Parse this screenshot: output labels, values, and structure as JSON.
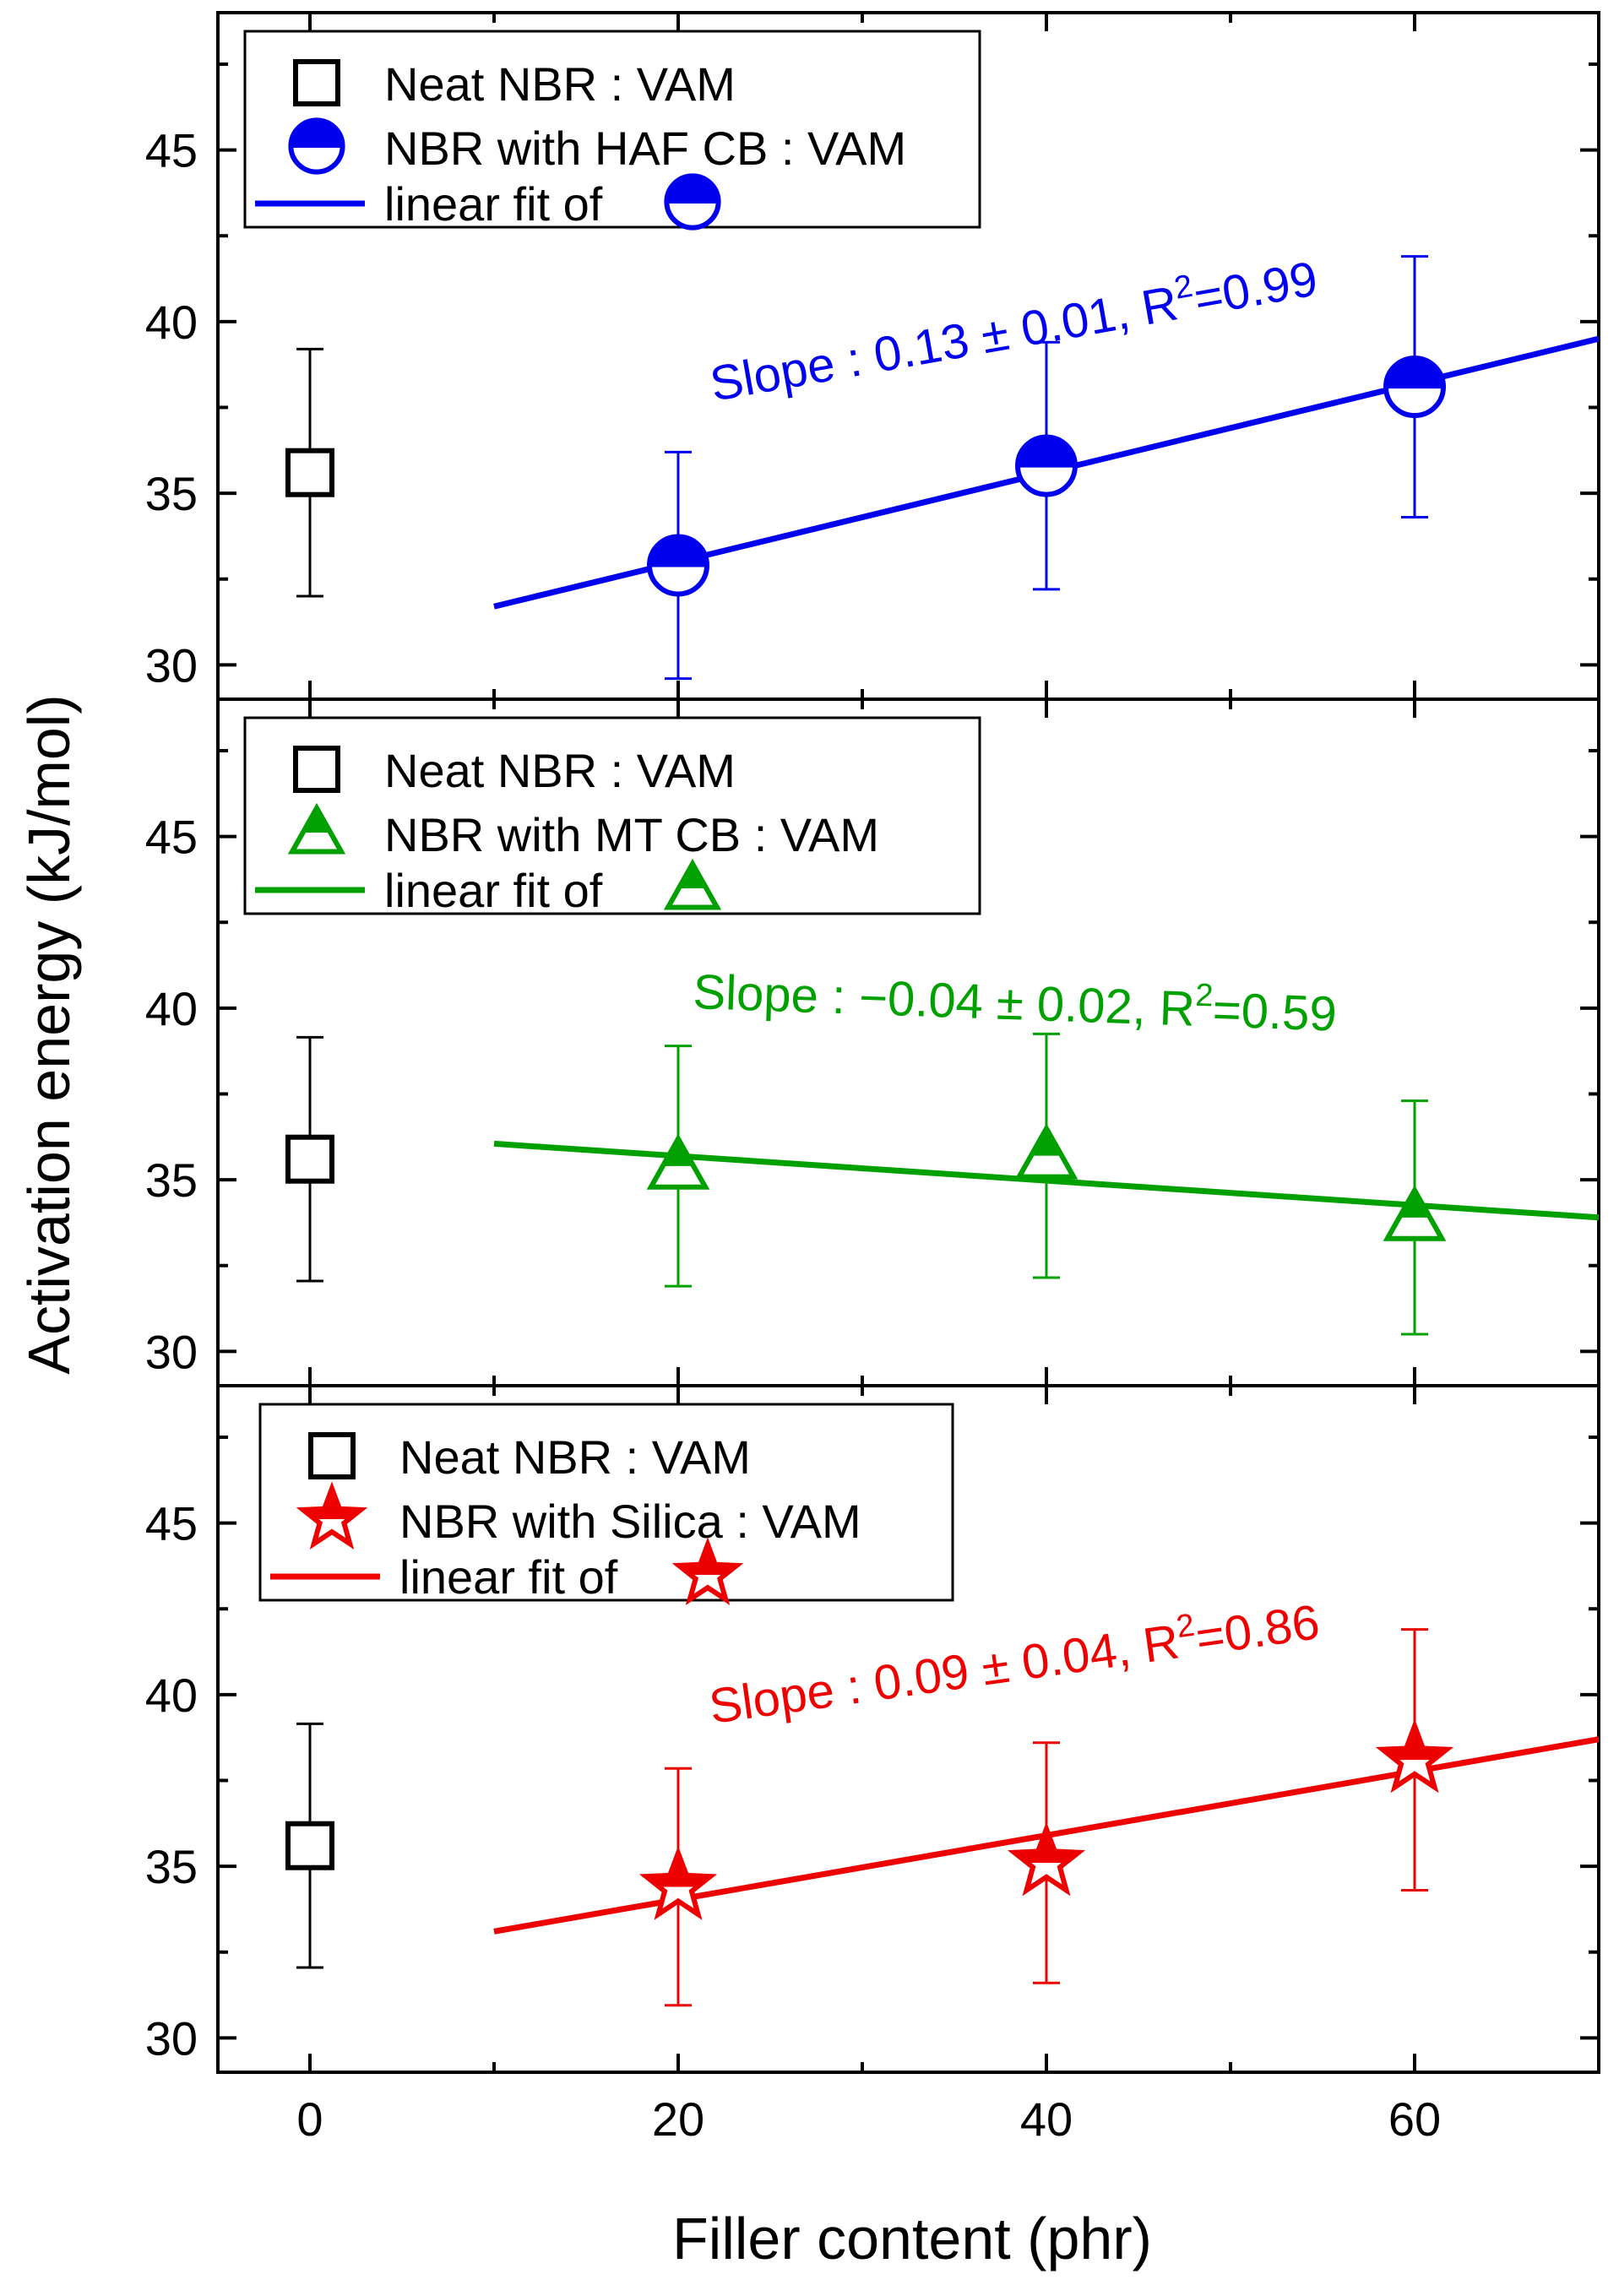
{
  "figure": {
    "ylabel": "Activation energy (kJ/mol)",
    "xlabel": "Filler content (phr)",
    "x_ticks": [
      "0",
      "20",
      "40",
      "60"
    ]
  },
  "chart_data": [
    {
      "type": "scatter",
      "panel": "top",
      "xlim": [
        -5,
        70
      ],
      "ylim": [
        29,
        49
      ],
      "y_ticks": [
        "30",
        "35",
        "40",
        "45"
      ],
      "y_tick_values": [
        30,
        35,
        40,
        45
      ],
      "color": "#0000ee",
      "legend": {
        "placement": "top-left",
        "neat": "Neat NBR : VAM",
        "filled": "NBR with HAF CB : VAM",
        "fit": "linear fit of"
      },
      "marker": "half-circle",
      "annotation": {
        "prefix": "Slope : 0.13 ± 0.01, R",
        "sup": "2",
        "suffix": "=0.99"
      },
      "neat": {
        "x": 0,
        "y": 35.6,
        "err": 3.6
      },
      "series": [
        {
          "x": 20,
          "y": 32.9,
          "err": 3.3
        },
        {
          "x": 40,
          "y": 35.8,
          "err": 3.6
        },
        {
          "x": 60,
          "y": 38.1,
          "err": 3.8
        }
      ],
      "fit": {
        "x": [
          10,
          70
        ],
        "y": [
          31.7,
          39.5
        ]
      }
    },
    {
      "type": "scatter",
      "panel": "middle",
      "xlim": [
        -5,
        70
      ],
      "ylim": [
        29,
        49
      ],
      "y_ticks": [
        "30",
        "35",
        "40",
        "45"
      ],
      "y_tick_values": [
        30,
        35,
        40,
        45
      ],
      "color": "#00a000",
      "legend": {
        "placement": "top-left",
        "neat": "Neat NBR : VAM",
        "filled": "NBR with MT CB : VAM",
        "fit": "linear fit of"
      },
      "marker": "half-triangle",
      "annotation": {
        "prefix": "Slope : −0.04 ± 0.02, R",
        "sup": "2",
        "suffix": "=0.59"
      },
      "neat": {
        "x": 0,
        "y": 35.6,
        "err": 3.55
      },
      "series": [
        {
          "x": 20,
          "y": 35.4,
          "err": 3.5
        },
        {
          "x": 40,
          "y": 35.7,
          "err": 3.55
        },
        {
          "x": 60,
          "y": 33.9,
          "err": 3.4
        }
      ],
      "fit": {
        "x": [
          10,
          70
        ],
        "y": [
          36.05,
          33.9
        ]
      }
    },
    {
      "type": "scatter",
      "panel": "bottom",
      "xlim": [
        -5,
        70
      ],
      "ylim": [
        29,
        49
      ],
      "y_ticks": [
        "30",
        "35",
        "40",
        "45"
      ],
      "y_tick_values": [
        30,
        35,
        40,
        45
      ],
      "color": "#ee0000",
      "legend": {
        "placement": "top-left",
        "neat": "Neat NBR : VAM",
        "filled": "NBR with Silica : VAM",
        "fit": "linear fit of"
      },
      "marker": "half-star",
      "annotation": {
        "prefix": "Slope : 0.09 ± 0.04, R",
        "sup": "2",
        "suffix": "=0.86"
      },
      "neat": {
        "x": 0,
        "y": 35.6,
        "err": 3.55
      },
      "series": [
        {
          "x": 20,
          "y": 34.4,
          "err": 3.45
        },
        {
          "x": 40,
          "y": 35.1,
          "err": 3.5
        },
        {
          "x": 60,
          "y": 38.1,
          "err": 3.8
        }
      ],
      "fit": {
        "x": [
          10,
          70
        ],
        "y": [
          33.1,
          38.7
        ]
      }
    }
  ]
}
